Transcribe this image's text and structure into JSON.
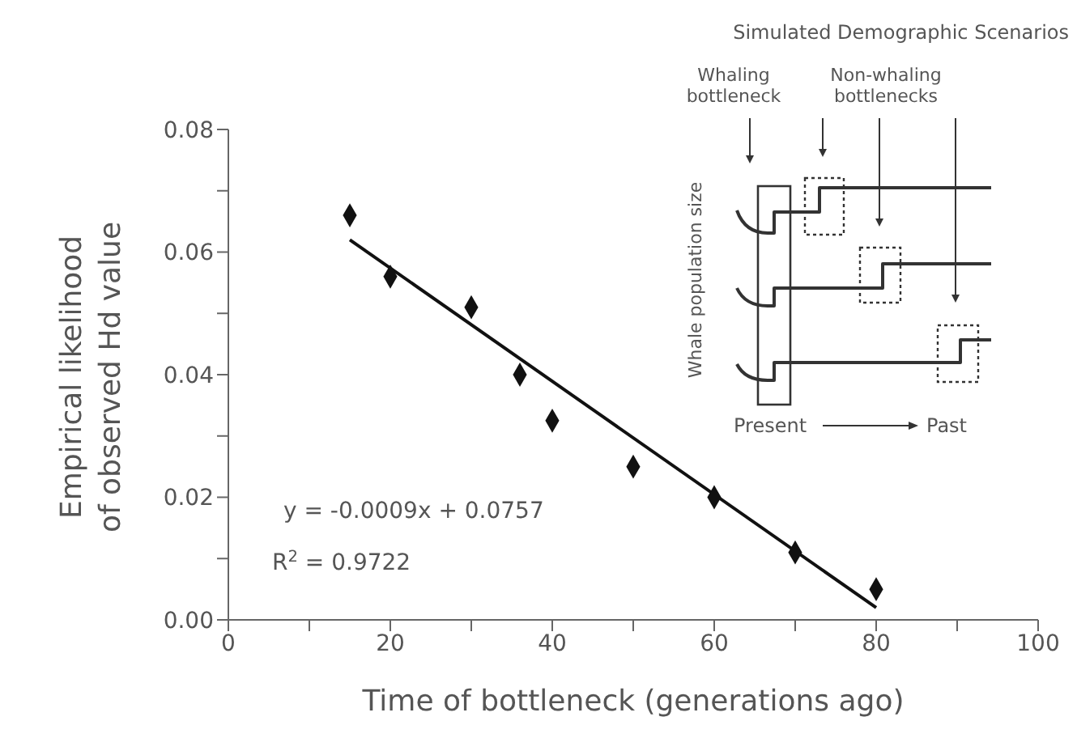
{
  "chart_data": {
    "type": "scatter",
    "xlabel": "Time of bottleneck (generations ago)",
    "ylabel": "Empirical likelihood of observed Hd value",
    "series": [
      {
        "marker": "diamond",
        "color": "#111111",
        "x": [
          15,
          20,
          30,
          36,
          40,
          50,
          60,
          70,
          80
        ],
        "values": [
          0.066,
          0.056,
          0.051,
          0.04,
          0.0325,
          0.025,
          0.02,
          0.011,
          0.005
        ]
      },
      {
        "type": "line",
        "marker": "none",
        "color": "#111111",
        "x": [
          15,
          80
        ],
        "values": [
          0.062,
          0.002
        ]
      }
    ],
    "xlim": [
      0,
      100
    ],
    "xticks": [
      0,
      {
        "value": 10,
        "label": null
      },
      20,
      {
        "value": 30,
        "label": null
      },
      40,
      {
        "value": 50,
        "label": null
      },
      60,
      {
        "value": 70,
        "label": null
      },
      80,
      {
        "value": 90,
        "label": null
      },
      100
    ],
    "ylim": [
      0,
      0.08
    ],
    "yticks": [
      {
        "value": 0,
        "label": "0.00"
      },
      {
        "value": 0.01,
        "label": null
      },
      0.02,
      {
        "value": 0.03,
        "label": null
      },
      0.04,
      {
        "value": 0.05,
        "label": null
      },
      0.06,
      {
        "value": 0.07,
        "label": null
      },
      0.08
    ],
    "grid": false,
    "legend": false,
    "annotations": [
      "y =  -0.0009x + 0.0757",
      "R$^{2}$ =  0.9722",
      "Simulated Demographic Scenarios",
      "Whaling bottleneck",
      "Non-whaling bottlenecks",
      "Whale population size",
      "Present",
      "Past"
    ]
  }
}
